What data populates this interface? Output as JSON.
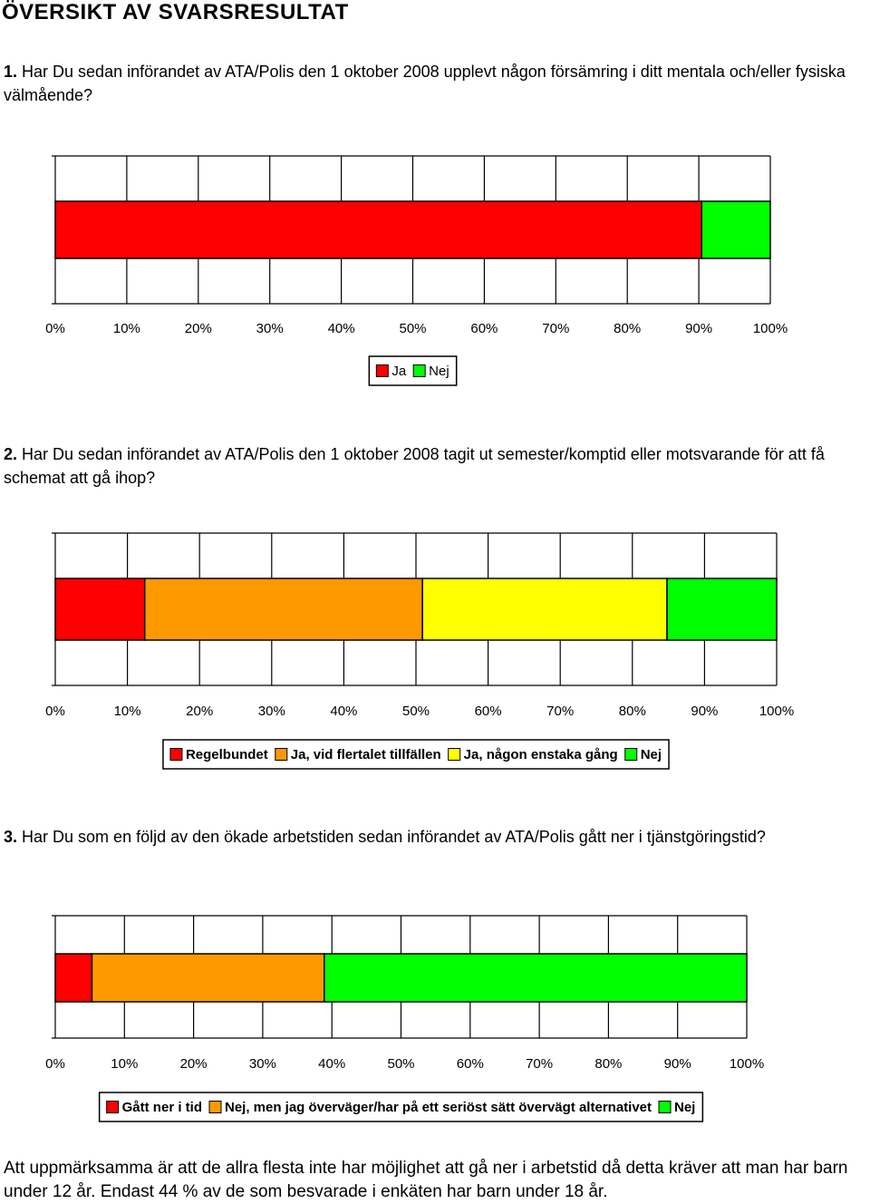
{
  "page": {
    "title": "ÖVERSIKT AV SVARSRESULTAT",
    "questions": [
      {
        "num": "1.",
        "text": "Har Du sedan införandet av ATA/Polis den 1 oktober 2008 upplevt någon försämring i ditt mentala och/eller fysiska välmående?"
      },
      {
        "num": "2.",
        "text": "Har Du sedan införandet av ATA/Polis den 1 oktober 2008 tagit ut semester/komptid eller motsvarande för att få schemat att gå ihop?"
      },
      {
        "num": "3.",
        "text": "Har Du som en följd av den ökade arbetstiden sedan införandet av ATA/Polis gått ner i tjänstgöringstid?"
      }
    ],
    "footnote": "Att uppmärksamma är att de allra flesta inte har möjlighet att gå ner i arbetstid då detta kräver att man har barn under 12 år. Endast 44 % av de som besvarade i enkäten har barn under 18 år."
  },
  "chart_data": [
    {
      "type": "bar",
      "stacked": true,
      "orientation": "horizontal",
      "xlim": [
        0,
        100
      ],
      "ticks": [
        "0%",
        "10%",
        "20%",
        "30%",
        "40%",
        "50%",
        "60%",
        "70%",
        "80%",
        "90%",
        "100%"
      ],
      "legend_position": "bottom",
      "legend_bold": false,
      "series": [
        {
          "name": "Ja",
          "value": 90.4,
          "color": "#ff0000"
        },
        {
          "name": "Nej",
          "value": 9.6,
          "color": "#00ff00"
        }
      ]
    },
    {
      "type": "bar",
      "stacked": true,
      "orientation": "horizontal",
      "xlim": [
        0,
        100
      ],
      "ticks": [
        "0%",
        "10%",
        "20%",
        "30%",
        "40%",
        "50%",
        "60%",
        "70%",
        "80%",
        "90%",
        "100%"
      ],
      "legend_position": "bottom",
      "legend_bold": true,
      "series": [
        {
          "name": "Regelbundet",
          "value": 12.4,
          "color": "#ff0000"
        },
        {
          "name": "Ja, vid flertalet tillfällen",
          "value": 38.5,
          "color": "#ff9900"
        },
        {
          "name": "Ja, någon enstaka gång",
          "value": 33.9,
          "color": "#ffff00"
        },
        {
          "name": "Nej",
          "value": 15.2,
          "color": "#00ff00"
        }
      ]
    },
    {
      "type": "bar",
      "stacked": true,
      "orientation": "horizontal",
      "xlim": [
        0,
        100
      ],
      "ticks": [
        "0%",
        "10%",
        "20%",
        "30%",
        "40%",
        "50%",
        "60%",
        "70%",
        "80%",
        "90%",
        "100%"
      ],
      "legend_position": "bottom",
      "legend_bold": true,
      "series": [
        {
          "name": "Gått ner i tid",
          "value": 5.3,
          "color": "#ff0000"
        },
        {
          "name": "Nej, men jag överväger/har på ett seriöst sätt övervägt alternativet",
          "value": 33.6,
          "color": "#ff9900"
        },
        {
          "name": "Nej",
          "value": 61.1,
          "color": "#00ff00"
        }
      ]
    }
  ]
}
